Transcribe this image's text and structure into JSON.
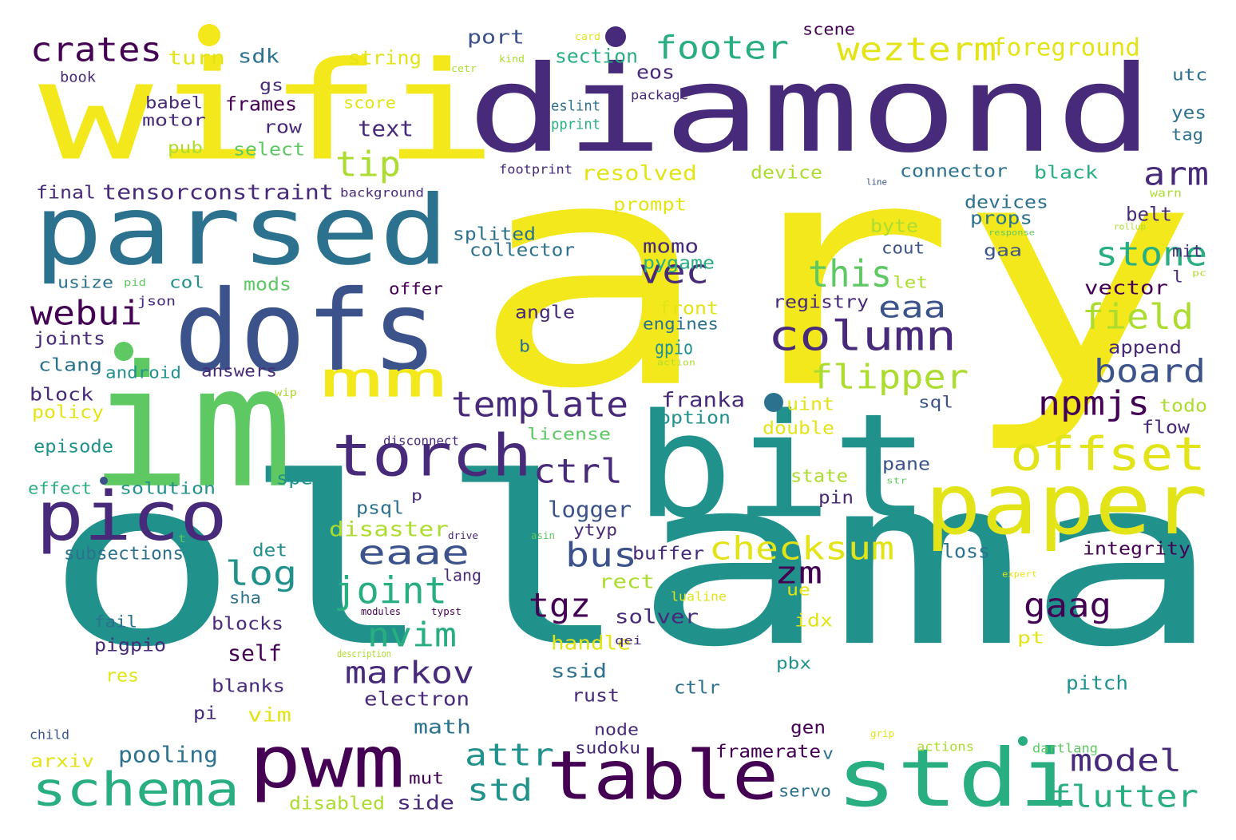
{
  "colors": {
    "c1": "#440154",
    "c2": "#472a7a",
    "c3": "#3b528b",
    "c4": "#2c728e",
    "c5": "#21918c",
    "c6": "#28ae80",
    "c7": "#5ec962",
    "c8": "#addc30",
    "c9": "#e2e418",
    "c10": "#f2e81c"
  },
  "words": {
    "ary": "ary",
    "ollama": "ollama",
    "diamond": "diamond",
    "wifi": "wifi",
    "bit": "bit",
    "im": "im",
    "dofs": "dofs",
    "parsed": "parsed",
    "paper": "paper",
    "stdi": "stdi",
    "table": "table",
    "pwm": "pwm",
    "pico": "pico",
    "torch": "torch",
    "schema": "schema",
    "mm": "mm",
    "offset": "offset",
    "column": "column",
    "template": "template",
    "checksum": "checksum",
    "crates": "crates",
    "wezterm": "wezterm",
    "footer": "footer",
    "foreground": "foreground",
    "tip": "tip",
    "arm": "arm",
    "stone": "stone",
    "this": "this",
    "field": "field",
    "webui": "webui",
    "flipper": "flipper",
    "board": "board",
    "npmjs": "npmjs",
    "eaa": "eaa",
    "vec": "vec",
    "ctrl": "ctrl",
    "eaae": "eaae",
    "joint": "joint",
    "bus": "bus",
    "log": "log",
    "zm": "zm",
    "gaag": "gaag",
    "tgz": "tgz",
    "nvim": "nvim",
    "markov": "markov",
    "attr": "attr",
    "std": "std",
    "model": "model",
    "flutter": "flutter",
    "logger": "logger",
    "disaster": "disaster",
    "pooling": "pooling",
    "tensorconstraint": "tensorconstraint",
    "sdk": "sdk",
    "string": "string",
    "port": "port",
    "section": "section",
    "turn": "turn",
    "book": "book",
    "gs": "gs",
    "babel": "babel",
    "motor": "motor",
    "frames": "frames",
    "score": "score",
    "eos": "eos",
    "package": "package",
    "eslint": "eslint",
    "pprint": "pprint",
    "scene": "scene",
    "card": "card",
    "kind": "kind",
    "cetr": "cetr",
    "utc": "utc",
    "yes": "yes",
    "tag": "tag",
    "text": "text",
    "row": "row",
    "pub": "pub",
    "select": "select",
    "resolved": "resolved",
    "footprint": "footprint",
    "device": "device",
    "connector": "connector",
    "black": "black",
    "final": "final",
    "background": "background",
    "line": "line",
    "warn": "warn",
    "devices": "devices",
    "props": "props",
    "belt": "belt",
    "rollup": "rollup",
    "response": "response",
    "mit": "mit",
    "prompt": "prompt",
    "momo": "momo",
    "pygame": "pygame",
    "splited": "splited",
    "collector": "collector",
    "byte": "byte",
    "cout": "cout",
    "gaa": "gaa",
    "usize": "usize",
    "pid": "pid",
    "col": "col",
    "mods": "mods",
    "json": "json",
    "offer": "offer",
    "let": "let",
    "vector": "vector",
    "pc": "pc",
    "l": "l",
    "registry": "registry",
    "front": "front",
    "angle": "angle",
    "engines": "engines",
    "joints": "joints",
    "append": "append",
    "b": "b",
    "gpio": "gpio",
    "clang": "clang",
    "android": "android",
    "answers": "answers",
    "action": "action",
    "franka": "franka",
    "block": "block",
    "wip": "wip",
    "uint": "uint",
    "sql": "sql",
    "todo": "todo",
    "policy": "policy",
    "option": "option",
    "double": "double",
    "flow": "flow",
    "license": "license",
    "disconnect": "disconnect",
    "episode": "episode",
    "pane": "pane",
    "state": "state",
    "speed": "speed",
    "effect": "effect",
    "solution": "solution",
    "psql": "psql",
    "str": "str",
    "p": "p",
    "pin": "pin",
    "drive": "drive",
    "asin": "asin",
    "t": "t",
    "ytyp": "ytyp",
    "subsections": "subsections",
    "det": "det",
    "buffer": "buffer",
    "loss": "loss",
    "integrity": "integrity",
    "lang": "lang",
    "rect": "rect",
    "expert": "expert",
    "sha": "sha",
    "ue": "ue",
    "lualine": "lualine",
    "modules": "modules",
    "typst": "typst",
    "solver": "solver",
    "blocks": "blocks",
    "fail": "fail",
    "idx": "idx",
    "handle": "handle",
    "qei": "qei",
    "pt": "pt",
    "pigpio": "pigpio",
    "description": "description",
    "self": "self",
    "res": "res",
    "ssid": "ssid",
    "pbx": "pbx",
    "pitch": "pitch",
    "blanks": "blanks",
    "rust": "rust",
    "ctlr": "ctlr",
    "electron": "electron",
    "pi": "pi",
    "vim": "vim",
    "math": "math",
    "node": "node",
    "gen": "gen",
    "child": "child",
    "grip": "grip",
    "sudoku": "sudoku",
    "actions": "actions",
    "dartlang": "dartlang",
    "arxiv": "arxiv",
    "framerate": "framerate",
    "v": "v",
    "mut": "mut",
    "disabled": "disabled",
    "side": "side",
    "servo": "servo"
  }
}
